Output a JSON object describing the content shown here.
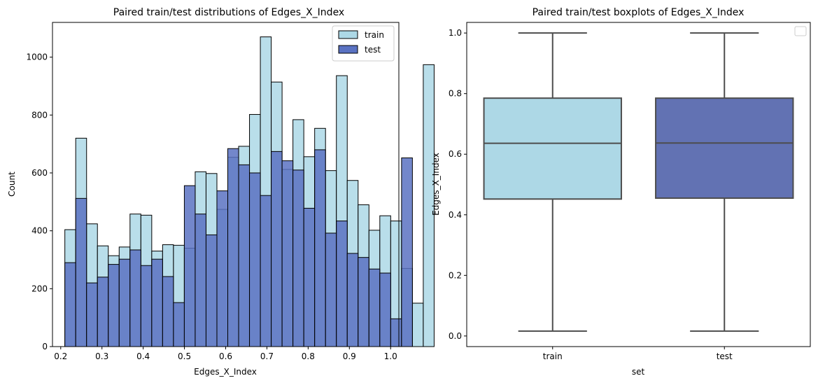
{
  "chart_data": [
    {
      "type": "bar",
      "title": "Paired train/test distributions of Edges_X_Index",
      "xlabel": "Edges_X_Index",
      "ylabel": "Count",
      "xlim": [
        0.18,
        1.02
      ],
      "ylim": [
        0,
        1120
      ],
      "xticks": [
        "0.2",
        "0.3",
        "0.4",
        "0.5",
        "0.6",
        "0.7",
        "0.8",
        "0.9",
        "1.0"
      ],
      "yticks": [
        "0",
        "200",
        "400",
        "600",
        "800",
        "1000"
      ],
      "bin_start": 0.21,
      "bin_width": 0.02634,
      "legend": {
        "position": "top-right"
      },
      "series": [
        {
          "name": "train",
          "color": "#ADD8E6",
          "alpha": 0.85,
          "values": [
            404,
            720,
            424,
            348,
            314,
            344,
            458,
            454,
            330,
            352,
            350,
            340,
            604,
            598,
            474,
            654,
            692,
            802,
            1070,
            914,
            612,
            784,
            656,
            754,
            608,
            936,
            574,
            490,
            402,
            452,
            434,
            270,
            150,
            974
          ]
        },
        {
          "name": "test",
          "color": "#5A72C2",
          "alpha": 0.85,
          "values": [
            290,
            512,
            220,
            240,
            284,
            302,
            334,
            280,
            302,
            242,
            152,
            556,
            458,
            386,
            538,
            684,
            628,
            600,
            522,
            674,
            642,
            610,
            478,
            680,
            392,
            434,
            322,
            308,
            268,
            254,
            96,
            652,
            0,
            0
          ]
        }
      ]
    },
    {
      "type": "box",
      "title": "Paired train/test boxplots of Edges_X_Index",
      "xlabel": "set",
      "ylabel": "Edges_X_Index",
      "ylim": [
        -0.035,
        1.035
      ],
      "yticks": [
        "0.0",
        "0.2",
        "0.4",
        "0.6",
        "0.8",
        "1.0"
      ],
      "categories": [
        "train",
        "test"
      ],
      "colors": [
        "#ADD8E6",
        "#6272B3"
      ],
      "legend": {
        "position": "top-right",
        "entries": []
      },
      "boxes": [
        {
          "category": "train",
          "min": 0.016,
          "q1": 0.452,
          "median": 0.636,
          "q3": 0.785,
          "max": 1.0
        },
        {
          "category": "test",
          "min": 0.016,
          "q1": 0.455,
          "median": 0.637,
          "q3": 0.785,
          "max": 1.0
        }
      ]
    }
  ]
}
